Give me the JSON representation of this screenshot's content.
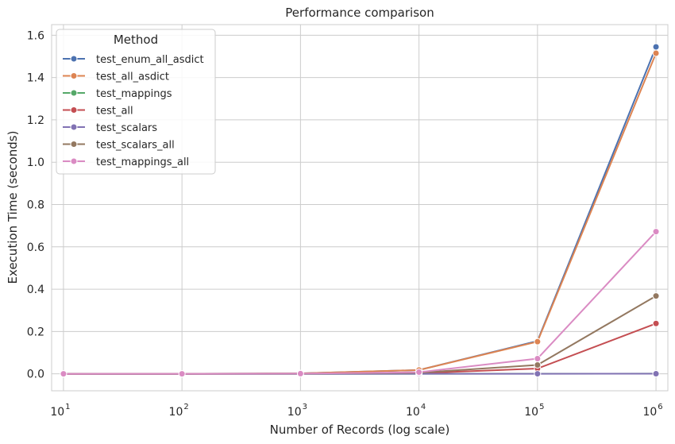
{
  "chart_data": {
    "type": "line",
    "title": "Performance comparison",
    "xlabel": "Number of Records (log scale)",
    "ylabel": "Execution Time (seconds)",
    "x_scale": "log",
    "x": [
      10,
      100,
      1000,
      10000,
      100000,
      1000000
    ],
    "x_tick_labels": [
      {
        "base": "10",
        "exp": "1"
      },
      {
        "base": "10",
        "exp": "2"
      },
      {
        "base": "10",
        "exp": "3"
      },
      {
        "base": "10",
        "exp": "4"
      },
      {
        "base": "10",
        "exp": "5"
      },
      {
        "base": "10",
        "exp": "6"
      }
    ],
    "ylim": [
      -0.08,
      1.65
    ],
    "y_ticks": [
      "0.0",
      "0.2",
      "0.4",
      "0.6",
      "0.8",
      "1.0",
      "1.2",
      "1.4",
      "1.6"
    ],
    "grid": true,
    "legend": {
      "title": "Method",
      "placement": "top-left"
    },
    "series": [
      {
        "name": "test_enum_all_asdict",
        "color": "#4c72b0",
        "values": [
          0.0002,
          0.0003,
          0.002,
          0.018,
          0.155,
          1.545
        ]
      },
      {
        "name": "test_all_asdict",
        "color": "#dd8452",
        "values": [
          0.0002,
          0.0003,
          0.002,
          0.018,
          0.152,
          1.515
        ]
      },
      {
        "name": "test_mappings",
        "color": "#55a868",
        "values": [
          0.0001,
          0.0001,
          0.0001,
          0.0002,
          0.0006,
          0.001
        ]
      },
      {
        "name": "test_all",
        "color": "#c44e52",
        "values": [
          0.0001,
          0.0001,
          0.0005,
          0.003,
          0.025,
          0.238
        ]
      },
      {
        "name": "test_scalars",
        "color": "#8172b3",
        "values": [
          0.0001,
          0.0001,
          0.0001,
          0.0002,
          0.0004,
          0.0005
        ]
      },
      {
        "name": "test_scalars_all",
        "color": "#937860",
        "values": [
          0.0001,
          0.0002,
          0.001,
          0.005,
          0.042,
          0.368
        ]
      },
      {
        "name": "test_mappings_all",
        "color": "#da8bc3",
        "values": [
          0.0001,
          0.0002,
          0.001,
          0.008,
          0.072,
          0.672
        ]
      }
    ]
  }
}
